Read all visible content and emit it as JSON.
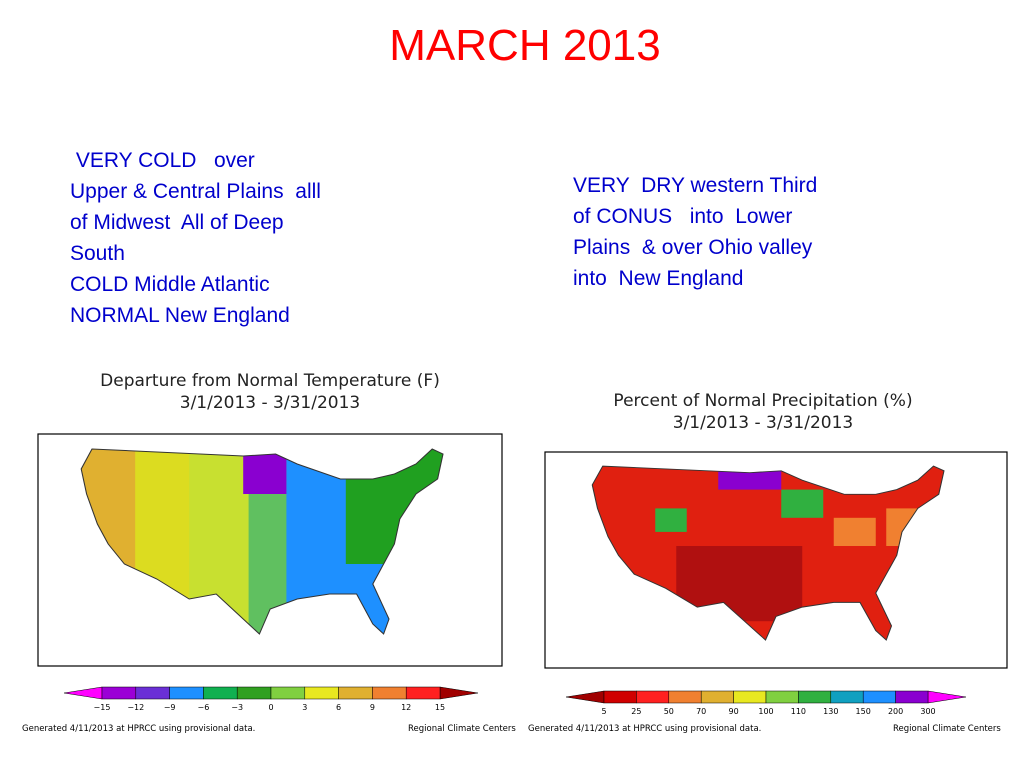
{
  "title": "MARCH  2013",
  "left_text": {
    "lines": [
      " VERY COLD   over",
      "Upper & Central Plains  alll",
      "of Midwest  All of Deep",
      "South",
      "COLD Middle Atlantic",
      "NORMAL New England"
    ]
  },
  "right_text": {
    "lines": [
      "VERY  DRY western Third",
      "of CONUS   into  Lower",
      "Plains  & over Ohio valley",
      "into  New England"
    ]
  },
  "left_map": {
    "title": [
      "Departure from Normal Temperature (F)",
      "3/1/2013 - 3/31/2013"
    ],
    "scale_labels": [
      "−15",
      "−12",
      "−9",
      "−6",
      "−3",
      "0",
      "3",
      "6",
      "9",
      "12",
      "15"
    ],
    "footer_left": "Generated 4/11/2013 at HPRCC using provisional data.",
    "footer_right": "Regional Climate Centers"
  },
  "right_map": {
    "title": [
      "Percent of Normal Precipitation (%)",
      "3/1/2013 - 3/31/2013"
    ],
    "scale_labels": [
      "5",
      "25",
      "50",
      "70",
      "90",
      "100",
      "110",
      "130",
      "150",
      "200",
      "300"
    ],
    "footer_left": "Generated 4/11/2013 at HPRCC using provisional data.",
    "footer_right": "Regional Climate Centers"
  }
}
